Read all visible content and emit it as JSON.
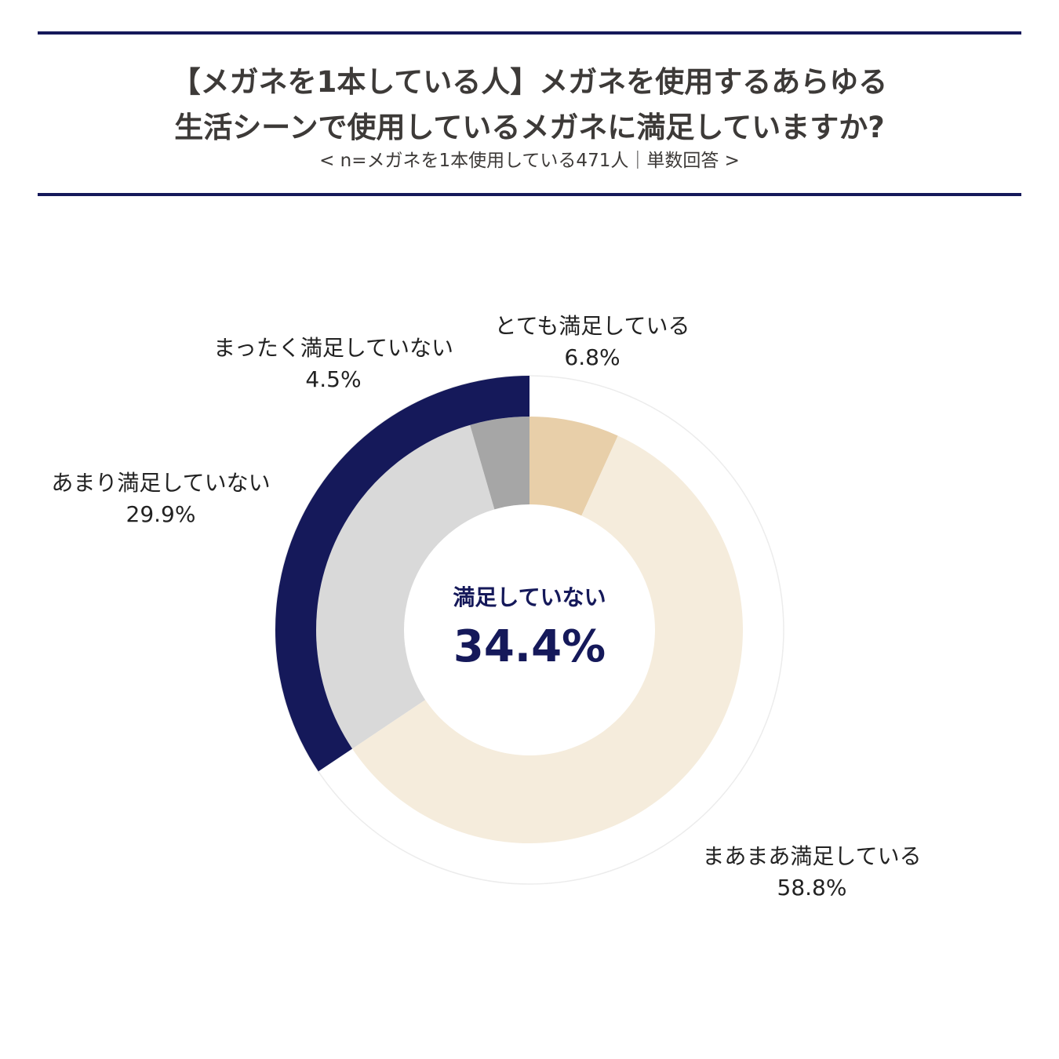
{
  "header": {
    "title_line1": "【メガネを1本している人】メガネを使用するあらゆる",
    "title_line2": "生活シーンで使用しているメガネに満足していますか?",
    "subtitle": "< n=メガネを1本使用している471人｜単数回答 >"
  },
  "center": {
    "label": "満足していない",
    "value": "34.4%"
  },
  "chart_data": {
    "type": "pie",
    "style": "donut",
    "categories": [
      "とても満足している",
      "まあまあ満足している",
      "あまり満足していない",
      "まったく満足していない"
    ],
    "values": [
      6.8,
      58.8,
      29.9,
      4.5
    ],
    "value_labels": [
      "6.8%",
      "58.8%",
      "29.9%",
      "4.5%"
    ],
    "colors": [
      "#e8cfa9",
      "#f5ecdc",
      "#d9d9d9",
      "#a6a6a6"
    ],
    "group": {
      "label": "満足していない",
      "value": 34.4,
      "members": [
        "あまり満足していない",
        "まったく満足していない"
      ],
      "color": "#15195a"
    }
  }
}
